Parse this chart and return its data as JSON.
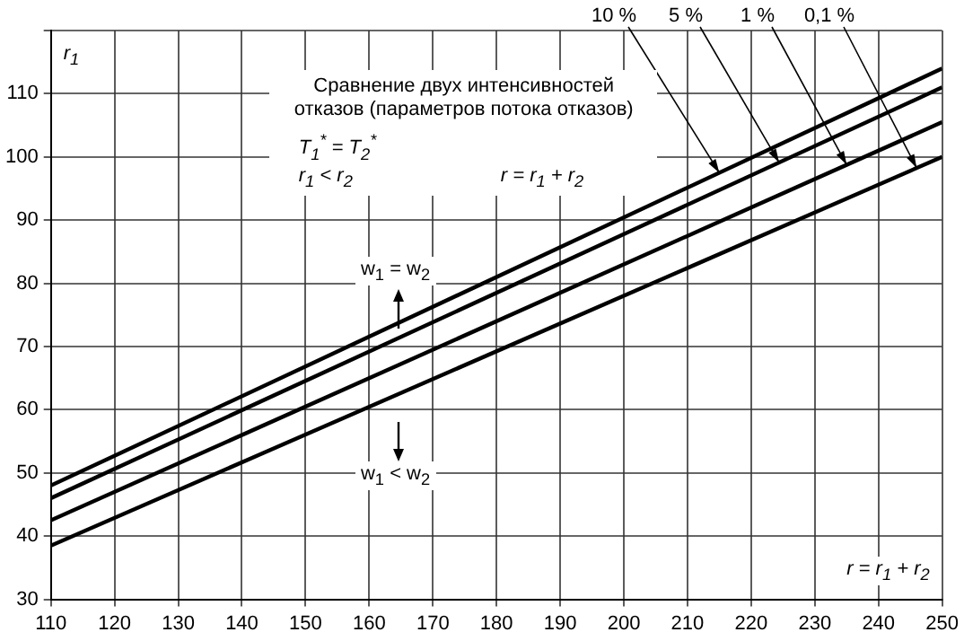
{
  "chart_data": {
    "type": "line",
    "x": [
      110,
      250
    ],
    "xlim": [
      110,
      250
    ],
    "ylim": [
      30,
      120
    ],
    "xticks": [
      110,
      120,
      130,
      140,
      150,
      160,
      170,
      180,
      190,
      200,
      210,
      220,
      230,
      240,
      250
    ],
    "yticks": [
      30,
      40,
      50,
      60,
      70,
      80,
      90,
      100,
      110,
      {
        "value": 120,
        "label": null
      }
    ],
    "grid": true,
    "legend": false,
    "marker": "none",
    "line_style": "solid",
    "ylabel": "r$_{1}$",
    "xlabel": "r = r$_{1}$ + r$_{2}$",
    "series": [
      {
        "name": "10 %",
        "color": "#000000",
        "values": [
          48,
          114
        ]
      },
      {
        "name": "5 %",
        "color": "#000000",
        "values": [
          46,
          111
        ]
      },
      {
        "name": "1 %",
        "color": "#000000",
        "values": [
          42.5,
          105.5
        ]
      },
      {
        "name": "0,1 %",
        "color": "#000000",
        "values": [
          38.5,
          100
        ]
      }
    ],
    "annotations": [
      "Сравнение двух интенсивностей отказов (параметров потока отказов)",
      "T$_{1}$$^{*}$ = T$_{2}$$^{*}$",
      "r$_{1}$ < r$_{2}$",
      "r = r$_{1}$ + r$_{2}$",
      "w$_{1}$ = w$_{2}$",
      "w$_{1}$ < w$_{2}$"
    ]
  }
}
